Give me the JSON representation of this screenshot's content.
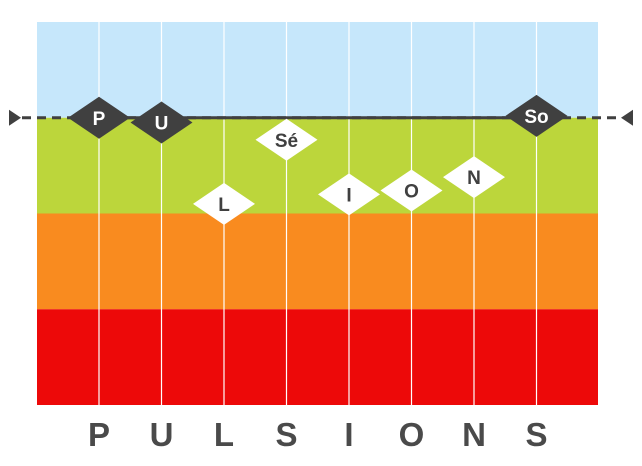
{
  "chart_data": {
    "type": "scatter",
    "title": "",
    "xlabel": "",
    "ylabel": "",
    "categories": [
      "P",
      "U",
      "L",
      "S",
      "I",
      "O",
      "N",
      "S"
    ],
    "ylim": [
      0,
      4
    ],
    "bands": [
      {
        "from": 3,
        "to": 4,
        "color": "#c6e7fb"
      },
      {
        "from": 2,
        "to": 3,
        "color": "#bcd63b"
      },
      {
        "from": 1,
        "to": 2,
        "color": "#f98b1f"
      },
      {
        "from": 0,
        "to": 1,
        "color": "#ed0909"
      }
    ],
    "reference_line": {
      "y": 3.0,
      "color": "#404040"
    },
    "points": [
      {
        "label": "P",
        "category_index": 0,
        "y": 3.0,
        "style": "dark"
      },
      {
        "label": "U",
        "category_index": 1,
        "y": 2.95,
        "style": "dark"
      },
      {
        "label": "L",
        "category_index": 2,
        "y": 2.1,
        "style": "light"
      },
      {
        "label": "Sé",
        "category_index": 3,
        "y": 2.77,
        "style": "light"
      },
      {
        "label": "I",
        "category_index": 4,
        "y": 2.2,
        "style": "light"
      },
      {
        "label": "O",
        "category_index": 5,
        "y": 2.24,
        "style": "light"
      },
      {
        "label": "N",
        "category_index": 6,
        "y": 2.38,
        "style": "light"
      },
      {
        "label": "So",
        "category_index": 7,
        "y": 3.02,
        "style": "dark"
      }
    ],
    "colors": {
      "dark": "#404040",
      "light": "#ffffff",
      "grid": "#ffffff",
      "tick_text": "#4a4a4a"
    }
  }
}
